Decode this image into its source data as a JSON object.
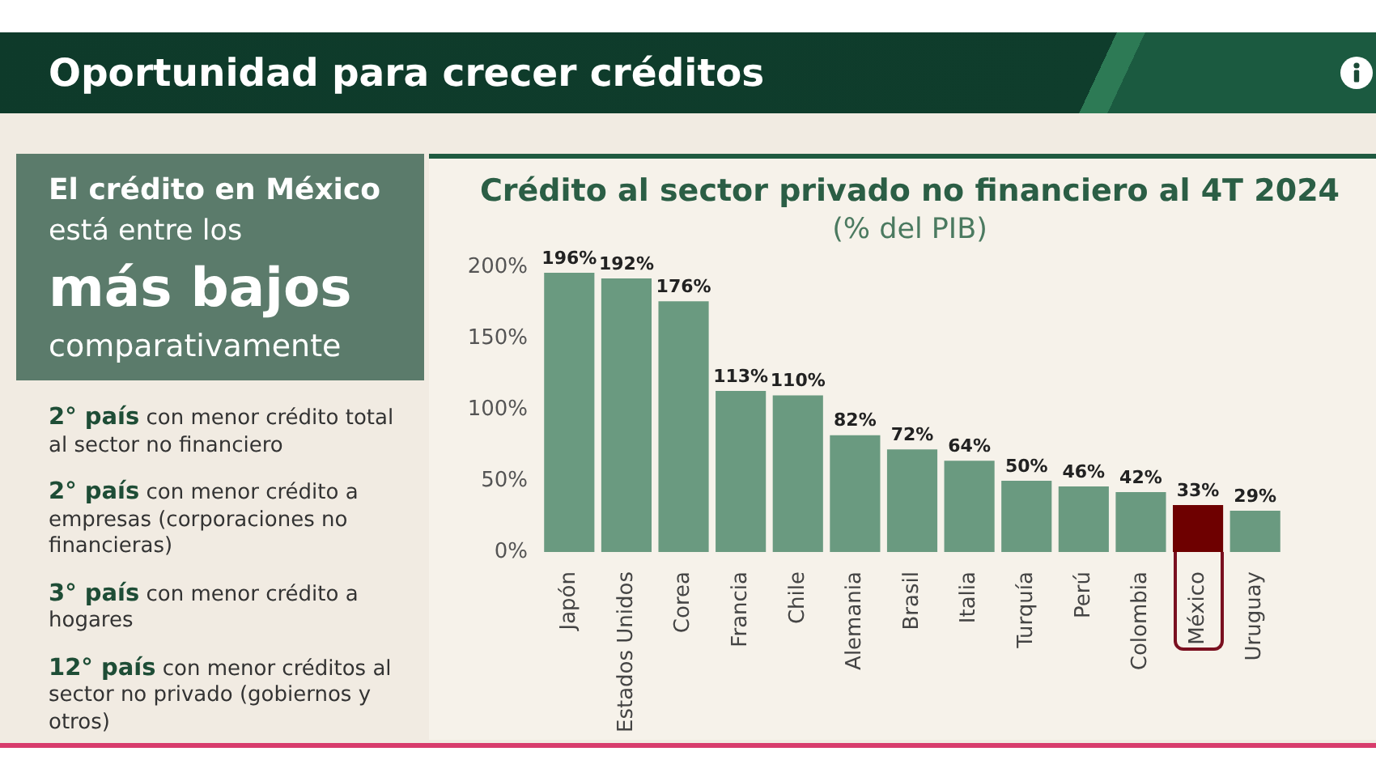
{
  "chart_data": {
    "type": "bar",
    "title": "Crédito al sector privado no financiero al 4T 2024",
    "subtitle": "(% del PIB)",
    "categories": [
      "Japón",
      "Estados Unidos",
      "Corea",
      "Francia",
      "Chile",
      "Alemania",
      "Brasil",
      "Italia",
      "Turquía",
      "Perú",
      "Colombia",
      "México",
      "Uruguay"
    ],
    "values": [
      196,
      192,
      176,
      113,
      110,
      82,
      72,
      64,
      50,
      46,
      42,
      33,
      29
    ],
    "colors": [
      "#6a9a80",
      "#6a9a80",
      "#6a9a80",
      "#6a9a80",
      "#6a9a80",
      "#6a9a80",
      "#6a9a80",
      "#6a9a80",
      "#6a9a80",
      "#6a9a80",
      "#6a9a80",
      "#6e0000",
      "#6a9a80"
    ],
    "value_labels": [
      "196%",
      "192%",
      "176%",
      "113%",
      "110%",
      "82%",
      "72%",
      "64%",
      "50%",
      "46%",
      "42%",
      "33%",
      "29%"
    ],
    "ylim": [
      0,
      200
    ],
    "yticks": [
      {
        "value": 0,
        "label": "0%"
      },
      {
        "value": 50,
        "label": "50%"
      },
      {
        "value": 100,
        "label": "100%"
      },
      {
        "value": 150,
        "label": "150%"
      },
      {
        "value": 200,
        "label": "200%"
      }
    ],
    "grid": false,
    "annotations": [
      "Oportunidad para crecer créditos",
      "El crédito en México",
      "está entre los",
      "más bajos",
      "comparativamente",
      "2° país con menor crédito total al sector no financiero",
      "2° país con menor crédito a empresas (corporaciones no financieras)",
      "3° país con menor crédito a hogares",
      "12° país con menor créditos al sector no privado (gobiernos y otros)"
    ]
  }
}
